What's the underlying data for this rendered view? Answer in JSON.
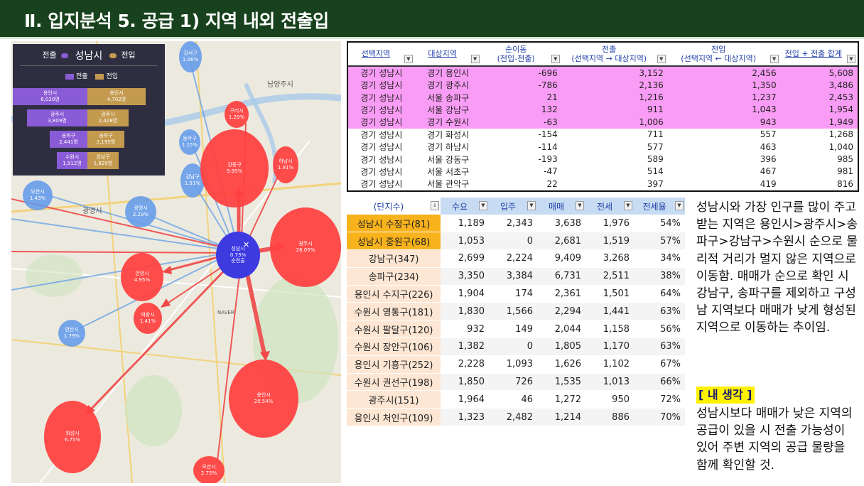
{
  "title": "Ⅱ. 입지분석 5. 공급 1) 지역 내외 전출입",
  "map": {
    "labels": [
      "남양주시",
      "광명시",
      "NAVER"
    ],
    "center_bubble": {
      "name": "성남시",
      "pct": "0.73%",
      "sub": "순전출"
    },
    "red_bubbles": [
      {
        "name": "강동구",
        "pct": "9.95%"
      },
      {
        "name": "광주시",
        "pct": "26.05%"
      },
      {
        "name": "용인시",
        "pct": "20.54%"
      },
      {
        "name": "화성시",
        "pct": "6.75%"
      },
      {
        "name": "안양시",
        "pct": "4.95%"
      },
      {
        "name": "의왕시",
        "pct": "1.41%"
      },
      {
        "name": "오산시",
        "pct": "2.75%"
      },
      {
        "name": "하남시",
        "pct": "1.91%"
      },
      {
        "name": "구리시",
        "pct": "1.29%"
      }
    ],
    "blue_bubbles": [
      {
        "name": "강서구",
        "pct": "1.06%"
      },
      {
        "name": "부천시",
        "pct": "1.43%"
      },
      {
        "name": "광명시",
        "pct": "2.29%"
      },
      {
        "name": "강남구",
        "pct": "1.91%"
      },
      {
        "name": "동작구",
        "pct": "1.15%"
      },
      {
        "name": "안산시",
        "pct": "1.79%"
      }
    ],
    "legend": {
      "out_label": "전출",
      "city": "성남시",
      "in_label": "전입",
      "key_out": "전출",
      "key_in": "전입",
      "colors": {
        "out": "#8a5bd6",
        "in": "#c49a4f"
      },
      "bars": [
        {
          "out_name": "용인시",
          "out_value": "6,020명",
          "in_name": "용인시",
          "in_value": "4,702명"
        },
        {
          "out_name": "광주시",
          "out_value": "3,809명",
          "in_name": "광주시",
          "in_value": "2,428명"
        },
        {
          "out_name": "송파구",
          "out_value": "2,441명",
          "in_name": "송파구",
          "in_value": "2,195명"
        },
        {
          "out_name": "수원시",
          "out_value": "1,912명",
          "in_name": "강남구",
          "in_value": "1,829명"
        }
      ]
    }
  },
  "top_table": {
    "headers": [
      {
        "line1": "선택지역",
        "line2": ""
      },
      {
        "line1": "대상지역",
        "line2": ""
      },
      {
        "line1": "순이동",
        "line2": "(전입-전출)"
      },
      {
        "line1": "전출",
        "line2": "(선택지역 → 대상지역)"
      },
      {
        "line1": "전입",
        "line2": "(선택지역 ← 대상지역)"
      },
      {
        "line1": "전입 + 전출 합계",
        "line2": ""
      }
    ],
    "rows": [
      [
        "경기 성남시",
        "경기 용인시",
        "-696",
        "3,152",
        "2,456",
        "5,608"
      ],
      [
        "경기 성남시",
        "경기 광주시",
        "-786",
        "2,136",
        "1,350",
        "3,486"
      ],
      [
        "경기 성남시",
        "서울 송파구",
        "21",
        "1,216",
        "1,237",
        "2,453"
      ],
      [
        "경기 성남시",
        "서울 강남구",
        "132",
        "911",
        "1,043",
        "1,954"
      ],
      [
        "경기 성남시",
        "경기 수원시",
        "-63",
        "1,006",
        "943",
        "1,949"
      ],
      [
        "경기 성남시",
        "경기 화성시",
        "-154",
        "711",
        "557",
        "1,268"
      ],
      [
        "경기 성남시",
        "경기 하남시",
        "-114",
        "577",
        "463",
        "1,040"
      ],
      [
        "경기 성남시",
        "서울 강동구",
        "-193",
        "589",
        "396",
        "985"
      ],
      [
        "경기 성남시",
        "서울 서초구",
        "-47",
        "514",
        "467",
        "981"
      ],
      [
        "경기 성남시",
        "서울 관악구",
        "22",
        "397",
        "419",
        "816"
      ]
    ],
    "highlight_color": "#f99cf5"
  },
  "bottom_table": {
    "headers": [
      "(단지수)",
      "수요",
      "입주",
      "매매",
      "전세",
      "전세율"
    ],
    "rows": [
      [
        "성남시 수정구(81)",
        "1,189",
        "2,343",
        "3,638",
        "1,976",
        "54%"
      ],
      [
        "성남시 중원구(68)",
        "1,053",
        "0",
        "2,681",
        "1,519",
        "57%"
      ],
      [
        "강남구(347)",
        "2,699",
        "2,224",
        "9,409",
        "3,268",
        "34%"
      ],
      [
        "송파구(234)",
        "3,350",
        "3,384",
        "6,731",
        "2,511",
        "38%"
      ],
      [
        "용인시 수지구(226)",
        "1,904",
        "174",
        "2,361",
        "1,501",
        "64%"
      ],
      [
        "수원시 영통구(181)",
        "1,830",
        "1,566",
        "2,294",
        "1,441",
        "63%"
      ],
      [
        "수원시 팔달구(120)",
        "932",
        "149",
        "2,044",
        "1,158",
        "56%"
      ],
      [
        "수원시 장안구(106)",
        "1,382",
        "0",
        "1,805",
        "1,170",
        "63%"
      ],
      [
        "용인시 기흥구(252)",
        "2,228",
        "1,093",
        "1,626",
        "1,102",
        "67%"
      ],
      [
        "수원시 권선구(198)",
        "1,850",
        "726",
        "1,535",
        "1,013",
        "66%"
      ],
      [
        "광주시(151)",
        "1,964",
        "46",
        "1,272",
        "950",
        "72%"
      ],
      [
        "용인시 처인구(109)",
        "1,323",
        "2,482",
        "1,214",
        "886",
        "70%"
      ]
    ],
    "highlight_color": "#f7b21c",
    "name_color": "#fde6d3"
  },
  "description": "성남시와 가장 인구를 많이 주고 받는 지역은 용인시>광주시>송파구>강남구>수원시 순으로 물리적 거리가 멀지 않은 지역으로 이동함. 매매가 순으로 확인 시 강남구, 송파구를 제외하고 구성남 지역보다 매매가 낮게 형성된 지역으로 이동하는 추이임.",
  "my_thought_tag": "[ 내 생각 ]",
  "my_thought": "성남시보다 매매가 낮은 지역의 공급이 있을 시 전출 가능성이 있어 주변 지역의 공급 물량을 함께 확인할 것."
}
